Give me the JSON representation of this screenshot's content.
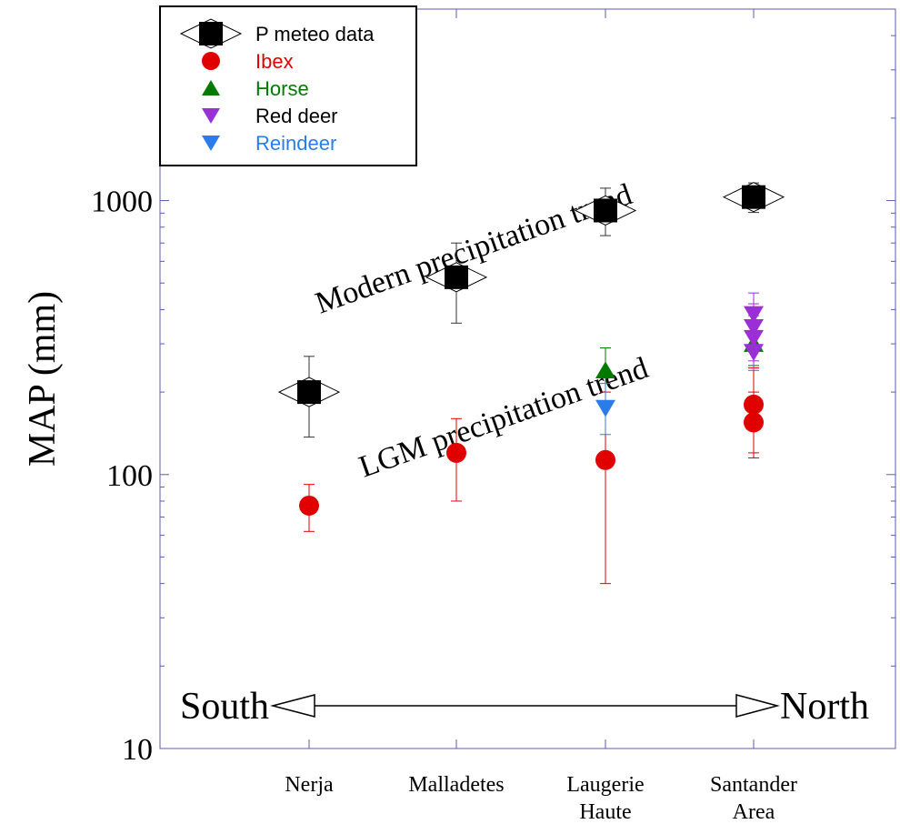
{
  "chart_data": {
    "type": "scatter",
    "title": "",
    "xlabel": "",
    "ylabel": "MAP (mm)",
    "y_scale": "log",
    "ylim": [
      10,
      5000
    ],
    "y_ticks": [
      10,
      100,
      1000
    ],
    "y_tick_labels": [
      "10",
      "100",
      "1000"
    ],
    "categories": [
      [
        "Nerja"
      ],
      [
        "Malladetes"
      ],
      [
        "Laugerie",
        "Haute"
      ],
      [
        "Santander",
        "Area"
      ]
    ],
    "legend_position": "top-left",
    "series": [
      {
        "name": "P meteo data",
        "marker": "square-diamond",
        "color": "#000000",
        "text_color": "#000000",
        "points": [
          {
            "cat": 0,
            "y": 200,
            "low": 137,
            "high": 270
          },
          {
            "cat": 1,
            "y": 525,
            "low": 357,
            "high": 700
          },
          {
            "cat": 2,
            "y": 920,
            "low": 745,
            "high": 1110
          },
          {
            "cat": 3,
            "y": 1030,
            "low": 905,
            "high": 1160
          }
        ]
      },
      {
        "name": "Ibex",
        "marker": "circle",
        "color": "#e00000",
        "text_color": "#e00000",
        "points": [
          {
            "cat": 0,
            "y": 77,
            "low": 62,
            "high": 92
          },
          {
            "cat": 1,
            "y": 120,
            "low": 80,
            "high": 160
          },
          {
            "cat": 2,
            "y": 113,
            "low": 40,
            "high": 200
          },
          {
            "cat": 3,
            "y": 180,
            "low": 115,
            "high": 245
          },
          {
            "cat": 3,
            "y": 155,
            "low": 120,
            "high": 200
          }
        ]
      },
      {
        "name": "Horse",
        "marker": "triangle-up",
        "color": "#007a00",
        "text_color": "#007a00",
        "points": [
          {
            "cat": 2,
            "y": 240,
            "low": 180,
            "high": 290
          },
          {
            "cat": 3,
            "y": 300,
            "low": 250,
            "high": 350
          }
        ]
      },
      {
        "name": "Red deer",
        "marker": "triangle-down",
        "color": "#9a2fd6",
        "text_color": "#000000",
        "points": [
          {
            "cat": 3,
            "y": 385,
            "low": 320,
            "high": 460
          },
          {
            "cat": 3,
            "y": 345,
            "low": 290,
            "high": 420
          },
          {
            "cat": 3,
            "y": 315,
            "low": 260,
            "high": 380
          },
          {
            "cat": 3,
            "y": 280,
            "low": 240,
            "high": 330
          }
        ]
      },
      {
        "name": "Reindeer",
        "marker": "triangle-down",
        "color": "#2a7de8",
        "text_color": "#2a7de8",
        "points": [
          {
            "cat": 2,
            "y": 175,
            "low": 140,
            "high": 215
          }
        ]
      }
    ],
    "annotations": [
      {
        "id": "modern-trend",
        "text": "Modern precipitation trend"
      },
      {
        "id": "lgm-trend",
        "text": "LGM precipitation trend"
      }
    ],
    "direction": {
      "left": "South",
      "right": "North"
    }
  }
}
